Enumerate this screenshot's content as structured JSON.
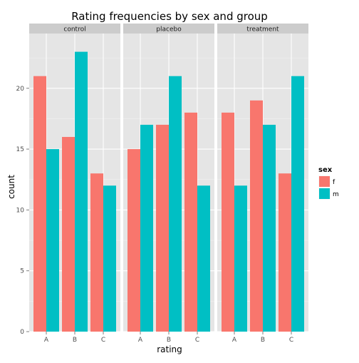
{
  "chart_data": {
    "type": "bar",
    "title": "Rating frequencies by sex and group",
    "xlabel": "rating",
    "ylabel": "count",
    "ylim": [
      0,
      24.5
    ],
    "yticks": [
      0,
      5,
      10,
      15,
      20
    ],
    "grid": true,
    "legend_placement": "right",
    "legend_title": "sex",
    "categories": [
      "A",
      "B",
      "C"
    ],
    "series_names": [
      "f",
      "m"
    ],
    "colors": {
      "f": "#F8766D",
      "m": "#00BFC4"
    },
    "panels": [
      {
        "label": "control",
        "series": [
          {
            "name": "f",
            "values": [
              21,
              16,
              13
            ]
          },
          {
            "name": "m",
            "values": [
              15,
              23,
              12
            ]
          }
        ]
      },
      {
        "label": "placebo",
        "series": [
          {
            "name": "f",
            "values": [
              15,
              17,
              18
            ]
          },
          {
            "name": "m",
            "values": [
              17,
              21,
              12
            ]
          }
        ]
      },
      {
        "label": "treatment",
        "series": [
          {
            "name": "f",
            "values": [
              18,
              19,
              13
            ]
          },
          {
            "name": "m",
            "values": [
              12,
              17,
              21
            ]
          }
        ]
      }
    ]
  }
}
